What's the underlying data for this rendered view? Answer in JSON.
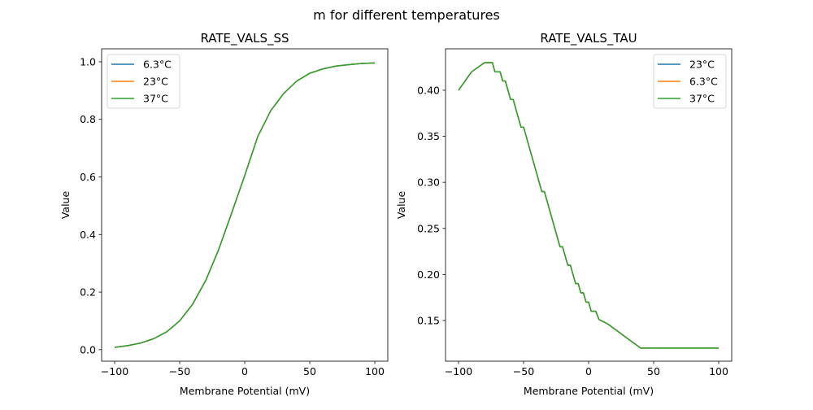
{
  "suptitle": "m for different temperatures",
  "chart_data": [
    {
      "type": "line",
      "title": "RATE_VALS_SS",
      "xlabel": "Membrane Potential (mV)",
      "ylabel": "Value",
      "xlim": [
        -110,
        110
      ],
      "ylim": [
        -0.04,
        1.045
      ],
      "xticks": [
        -100,
        -50,
        0,
        50,
        100
      ],
      "xtick_labels": [
        "−100",
        "−50",
        "0",
        "50",
        "100"
      ],
      "yticks": [
        0.0,
        0.2,
        0.4,
        0.6,
        0.8,
        1.0
      ],
      "ytick_labels": [
        "0.0",
        "0.2",
        "0.4",
        "0.6",
        "0.8",
        "1.0"
      ],
      "grid": false,
      "legend_position": "upper-left",
      "x": [
        -100,
        -90,
        -80,
        -70,
        -60,
        -50,
        -40,
        -30,
        -20,
        -10,
        0,
        10,
        20,
        30,
        40,
        50,
        60,
        70,
        80,
        90,
        100
      ],
      "series": [
        {
          "name": "6.3°C",
          "color": "#1f77b4",
          "values": [
            0.008,
            0.014,
            0.023,
            0.038,
            0.062,
            0.1,
            0.158,
            0.24,
            0.348,
            0.475,
            0.605,
            0.74,
            0.83,
            0.89,
            0.933,
            0.96,
            0.975,
            0.985,
            0.99,
            0.994,
            0.996
          ]
        },
        {
          "name": "23°C",
          "color": "#ff7f0e",
          "values": [
            0.008,
            0.014,
            0.023,
            0.038,
            0.062,
            0.1,
            0.158,
            0.24,
            0.348,
            0.475,
            0.605,
            0.74,
            0.83,
            0.89,
            0.933,
            0.96,
            0.975,
            0.985,
            0.99,
            0.994,
            0.996
          ]
        },
        {
          "name": "37°C",
          "color": "#2ca02c",
          "values": [
            0.008,
            0.014,
            0.023,
            0.038,
            0.062,
            0.1,
            0.158,
            0.24,
            0.348,
            0.475,
            0.605,
            0.74,
            0.83,
            0.89,
            0.933,
            0.96,
            0.975,
            0.985,
            0.99,
            0.994,
            0.996
          ]
        }
      ]
    },
    {
      "type": "line",
      "title": "RATE_VALS_TAU",
      "xlabel": "Membrane Potential (mV)",
      "ylabel": "Value",
      "xlim": [
        -110,
        110
      ],
      "ylim": [
        0.1058,
        0.445
      ],
      "xticks": [
        -100,
        -50,
        0,
        50,
        100
      ],
      "xtick_labels": [
        "−100",
        "−50",
        "0",
        "50",
        "100"
      ],
      "yticks": [
        0.15,
        0.2,
        0.25,
        0.3,
        0.35,
        0.4
      ],
      "ytick_labels": [
        "0.15",
        "0.20",
        "0.25",
        "0.30",
        "0.35",
        "0.40"
      ],
      "grid": false,
      "legend_position": "upper-right",
      "x": [
        -100,
        -90,
        -80,
        -74,
        -72,
        -68,
        -66,
        -64,
        -60,
        -58,
        -52,
        -50,
        -36,
        -34,
        -22,
        -20,
        -16,
        -14,
        -10,
        -8,
        -6,
        -4,
        -2,
        0,
        2,
        5.5,
        8,
        15,
        40,
        100
      ],
      "series": [
        {
          "name": "23°C",
          "color": "#1f77b4",
          "values": [
            0.4,
            0.42,
            0.43,
            0.43,
            0.42,
            0.42,
            0.41,
            0.41,
            0.39,
            0.39,
            0.36,
            0.36,
            0.29,
            0.29,
            0.23,
            0.23,
            0.21,
            0.21,
            0.19,
            0.19,
            0.18,
            0.18,
            0.17,
            0.17,
            0.16,
            0.16,
            0.151,
            0.146,
            0.12,
            0.12
          ]
        },
        {
          "name": "6.3°C",
          "color": "#ff7f0e",
          "values": [
            0.4,
            0.42,
            0.43,
            0.43,
            0.42,
            0.42,
            0.41,
            0.41,
            0.39,
            0.39,
            0.36,
            0.36,
            0.29,
            0.29,
            0.23,
            0.23,
            0.21,
            0.21,
            0.19,
            0.19,
            0.18,
            0.18,
            0.17,
            0.17,
            0.16,
            0.16,
            0.151,
            0.146,
            0.12,
            0.12
          ]
        },
        {
          "name": "37°C",
          "color": "#2ca02c",
          "values": [
            0.4,
            0.42,
            0.43,
            0.43,
            0.42,
            0.42,
            0.41,
            0.41,
            0.39,
            0.39,
            0.36,
            0.36,
            0.29,
            0.29,
            0.23,
            0.23,
            0.21,
            0.21,
            0.19,
            0.19,
            0.18,
            0.18,
            0.17,
            0.17,
            0.16,
            0.16,
            0.151,
            0.146,
            0.12,
            0.12
          ]
        }
      ]
    }
  ]
}
